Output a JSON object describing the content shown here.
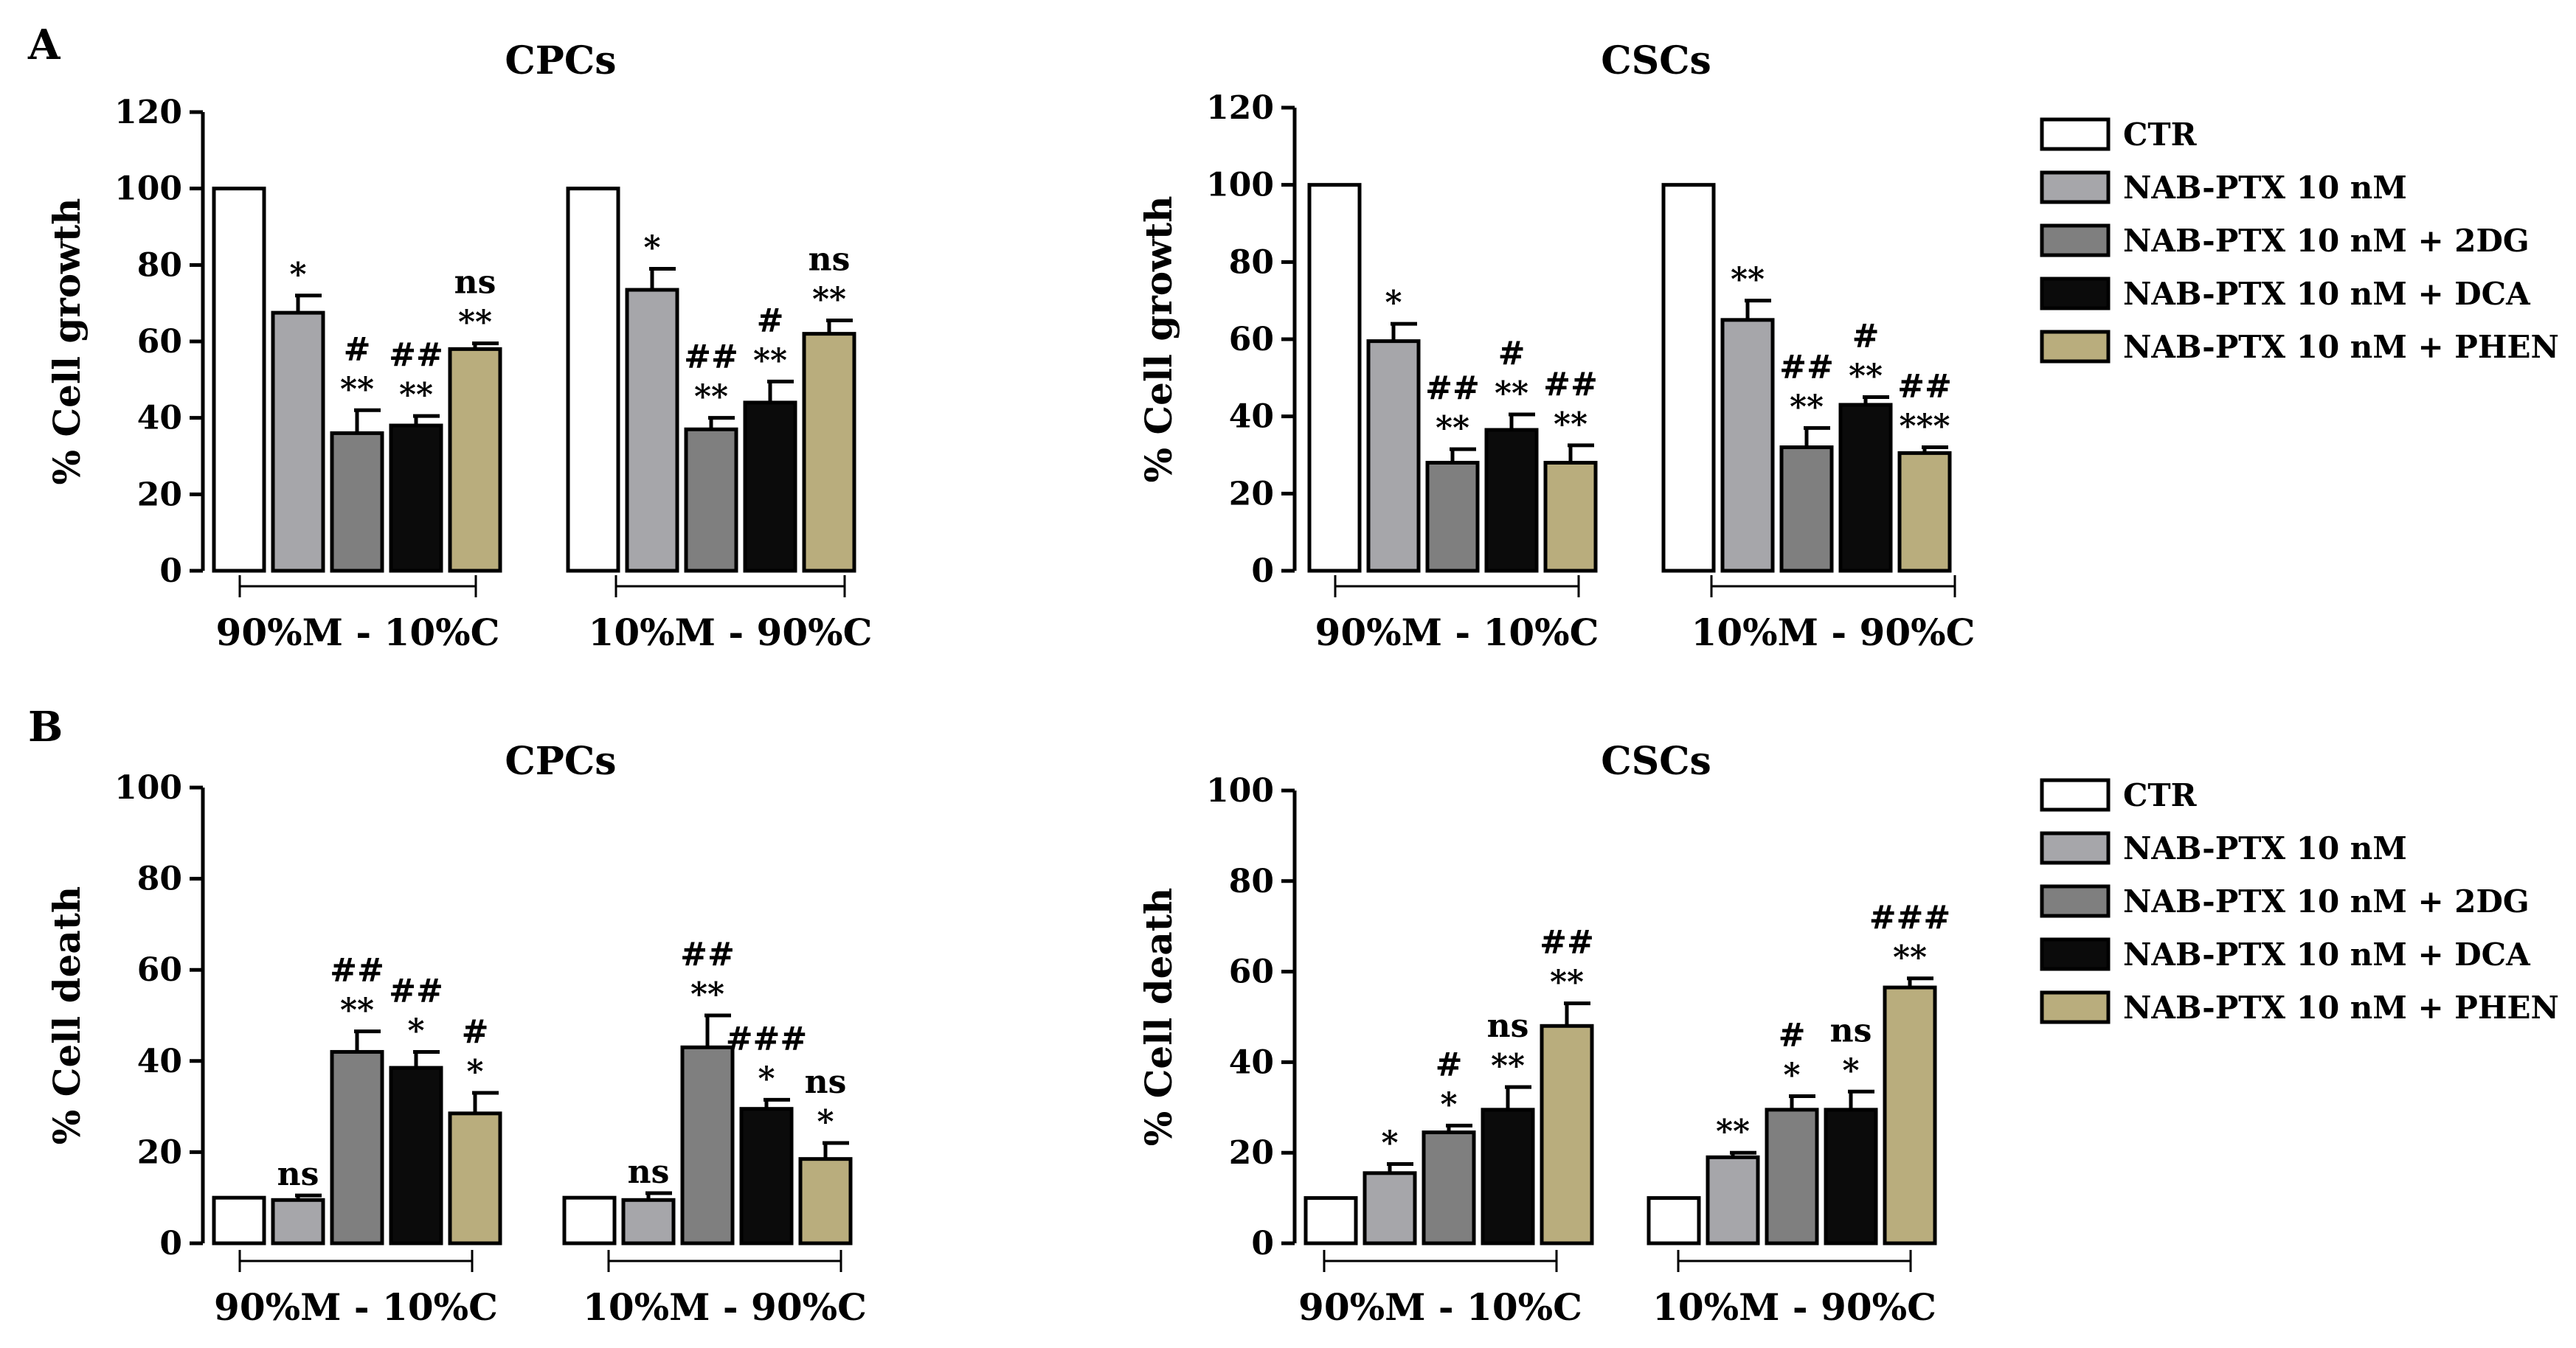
{
  "panel_labels": [
    "A",
    "B"
  ],
  "legend": {
    "entries": [
      "CTR",
      "NAB-PTX 10 nM",
      "NAB-PTX 10 nM + 2DG",
      "NAB-PTX 10 nM + DCA",
      "NAB-PTX 10 nM + PHEN"
    ]
  },
  "colors": {
    "CTR": "#ffffff",
    "NAB-PTX 10 nM": "#a6a6aa",
    "NAB-PTX 10 nM + 2DG": "#7f7f7f",
    "NAB-PTX 10 nM + DCA": "#0b0b0b",
    "NAB-PTX 10 nM + PHEN": "#b9ad7d"
  },
  "chart_data": [
    {
      "type": "bar",
      "panel": "A",
      "title": "CPCs",
      "ylabel": "% Cell growth",
      "ylim": [
        0,
        120
      ],
      "yticks": [
        0,
        20,
        40,
        60,
        80,
        100,
        120
      ],
      "categories": [
        "90%M - 10%C",
        "10%M - 90%C"
      ],
      "series": [
        {
          "name": "CTR",
          "values": [
            100,
            100
          ],
          "errors": [
            0,
            0
          ],
          "annotations": [
            "",
            ""
          ]
        },
        {
          "name": "NAB-PTX 10 nM",
          "values": [
            67.5,
            73.5
          ],
          "errors": [
            4.5,
            5.5
          ],
          "annotations": [
            "*",
            "*"
          ]
        },
        {
          "name": "NAB-PTX 10 nM + 2DG",
          "values": [
            36,
            37
          ],
          "errors": [
            6,
            3
          ],
          "annotations": [
            "#\n**",
            "##\n**"
          ]
        },
        {
          "name": "NAB-PTX 10 nM + DCA",
          "values": [
            38,
            44
          ],
          "errors": [
            2.5,
            5.5
          ],
          "annotations": [
            "##\n**",
            "#\n**"
          ]
        },
        {
          "name": "NAB-PTX 10 nM + PHEN",
          "values": [
            58,
            62
          ],
          "errors": [
            1.5,
            3.5
          ],
          "annotations": [
            "ns\n**",
            "ns\n**"
          ]
        }
      ]
    },
    {
      "type": "bar",
      "panel": "A",
      "title": "CSCs",
      "ylabel": "% Cell growth",
      "ylim": [
        0,
        120
      ],
      "yticks": [
        0,
        20,
        40,
        60,
        80,
        100,
        120
      ],
      "categories": [
        "90%M - 10%C",
        "10%M - 90%C"
      ],
      "series": [
        {
          "name": "CTR",
          "values": [
            100,
            100
          ],
          "errors": [
            0,
            0
          ],
          "annotations": [
            "",
            ""
          ]
        },
        {
          "name": "NAB-PTX 10 nM",
          "values": [
            59.5,
            65
          ],
          "errors": [
            4.5,
            5
          ],
          "annotations": [
            "*",
            "**"
          ]
        },
        {
          "name": "NAB-PTX 10 nM + 2DG",
          "values": [
            28,
            32
          ],
          "errors": [
            3.5,
            5
          ],
          "annotations": [
            "##\n**",
            "##\n**"
          ]
        },
        {
          "name": "NAB-PTX 10 nM + DCA",
          "values": [
            36.5,
            43
          ],
          "errors": [
            4,
            2
          ],
          "annotations": [
            "#\n**",
            "#\n**"
          ]
        },
        {
          "name": "NAB-PTX 10 nM + PHEN",
          "values": [
            28,
            30.5
          ],
          "errors": [
            4.5,
            1.5
          ],
          "annotations": [
            "##\n**",
            "##\n***"
          ]
        }
      ]
    },
    {
      "type": "bar",
      "panel": "B",
      "title": "CPCs",
      "ylabel": "% Cell death",
      "ylim": [
        0,
        100
      ],
      "yticks": [
        0,
        20,
        40,
        60,
        80,
        100
      ],
      "categories": [
        "90%M - 10%C",
        "10%M - 90%C"
      ],
      "series": [
        {
          "name": "CTR",
          "values": [
            10,
            10
          ],
          "errors": [
            0,
            0
          ],
          "annotations": [
            "",
            ""
          ]
        },
        {
          "name": "NAB-PTX 10 nM",
          "values": [
            9.5,
            9.5
          ],
          "errors": [
            1,
            1.5
          ],
          "annotations": [
            "ns",
            "ns"
          ]
        },
        {
          "name": "NAB-PTX 10 nM + 2DG",
          "values": [
            42,
            43
          ],
          "errors": [
            4.5,
            7
          ],
          "annotations": [
            "##\n**",
            "##\n**"
          ]
        },
        {
          "name": "NAB-PTX 10 nM + DCA",
          "values": [
            38.5,
            29.5
          ],
          "errors": [
            3.5,
            2
          ],
          "annotations": [
            "##\n*",
            "###\n*"
          ]
        },
        {
          "name": "NAB-PTX 10 nM + PHEN",
          "values": [
            28.5,
            18.5
          ],
          "errors": [
            4.5,
            3.5
          ],
          "annotations": [
            "#\n*",
            "ns\n*"
          ]
        }
      ]
    },
    {
      "type": "bar",
      "panel": "B",
      "title": "CSCs",
      "ylabel": "% Cell death",
      "ylim": [
        0,
        100
      ],
      "yticks": [
        0,
        20,
        40,
        60,
        80,
        100
      ],
      "categories": [
        "90%M - 10%C",
        "10%M - 90%C"
      ],
      "series": [
        {
          "name": "CTR",
          "values": [
            10,
            10
          ],
          "errors": [
            0,
            0
          ],
          "annotations": [
            "",
            ""
          ]
        },
        {
          "name": "NAB-PTX 10 nM",
          "values": [
            15.5,
            19
          ],
          "errors": [
            2,
            1
          ],
          "annotations": [
            "*",
            "**"
          ]
        },
        {
          "name": "NAB-PTX 10 nM + 2DG",
          "values": [
            24.5,
            29.5
          ],
          "errors": [
            1.5,
            3
          ],
          "annotations": [
            "#\n*",
            "#\n*"
          ]
        },
        {
          "name": "NAB-PTX 10 nM + DCA",
          "values": [
            29.5,
            29.5
          ],
          "errors": [
            5,
            4
          ],
          "annotations": [
            "ns\n**",
            "ns\n*"
          ]
        },
        {
          "name": "NAB-PTX 10 nM + PHEN",
          "values": [
            48,
            56.5
          ],
          "errors": [
            5,
            2
          ],
          "annotations": [
            "##\n**",
            "###\n**"
          ]
        }
      ]
    }
  ]
}
